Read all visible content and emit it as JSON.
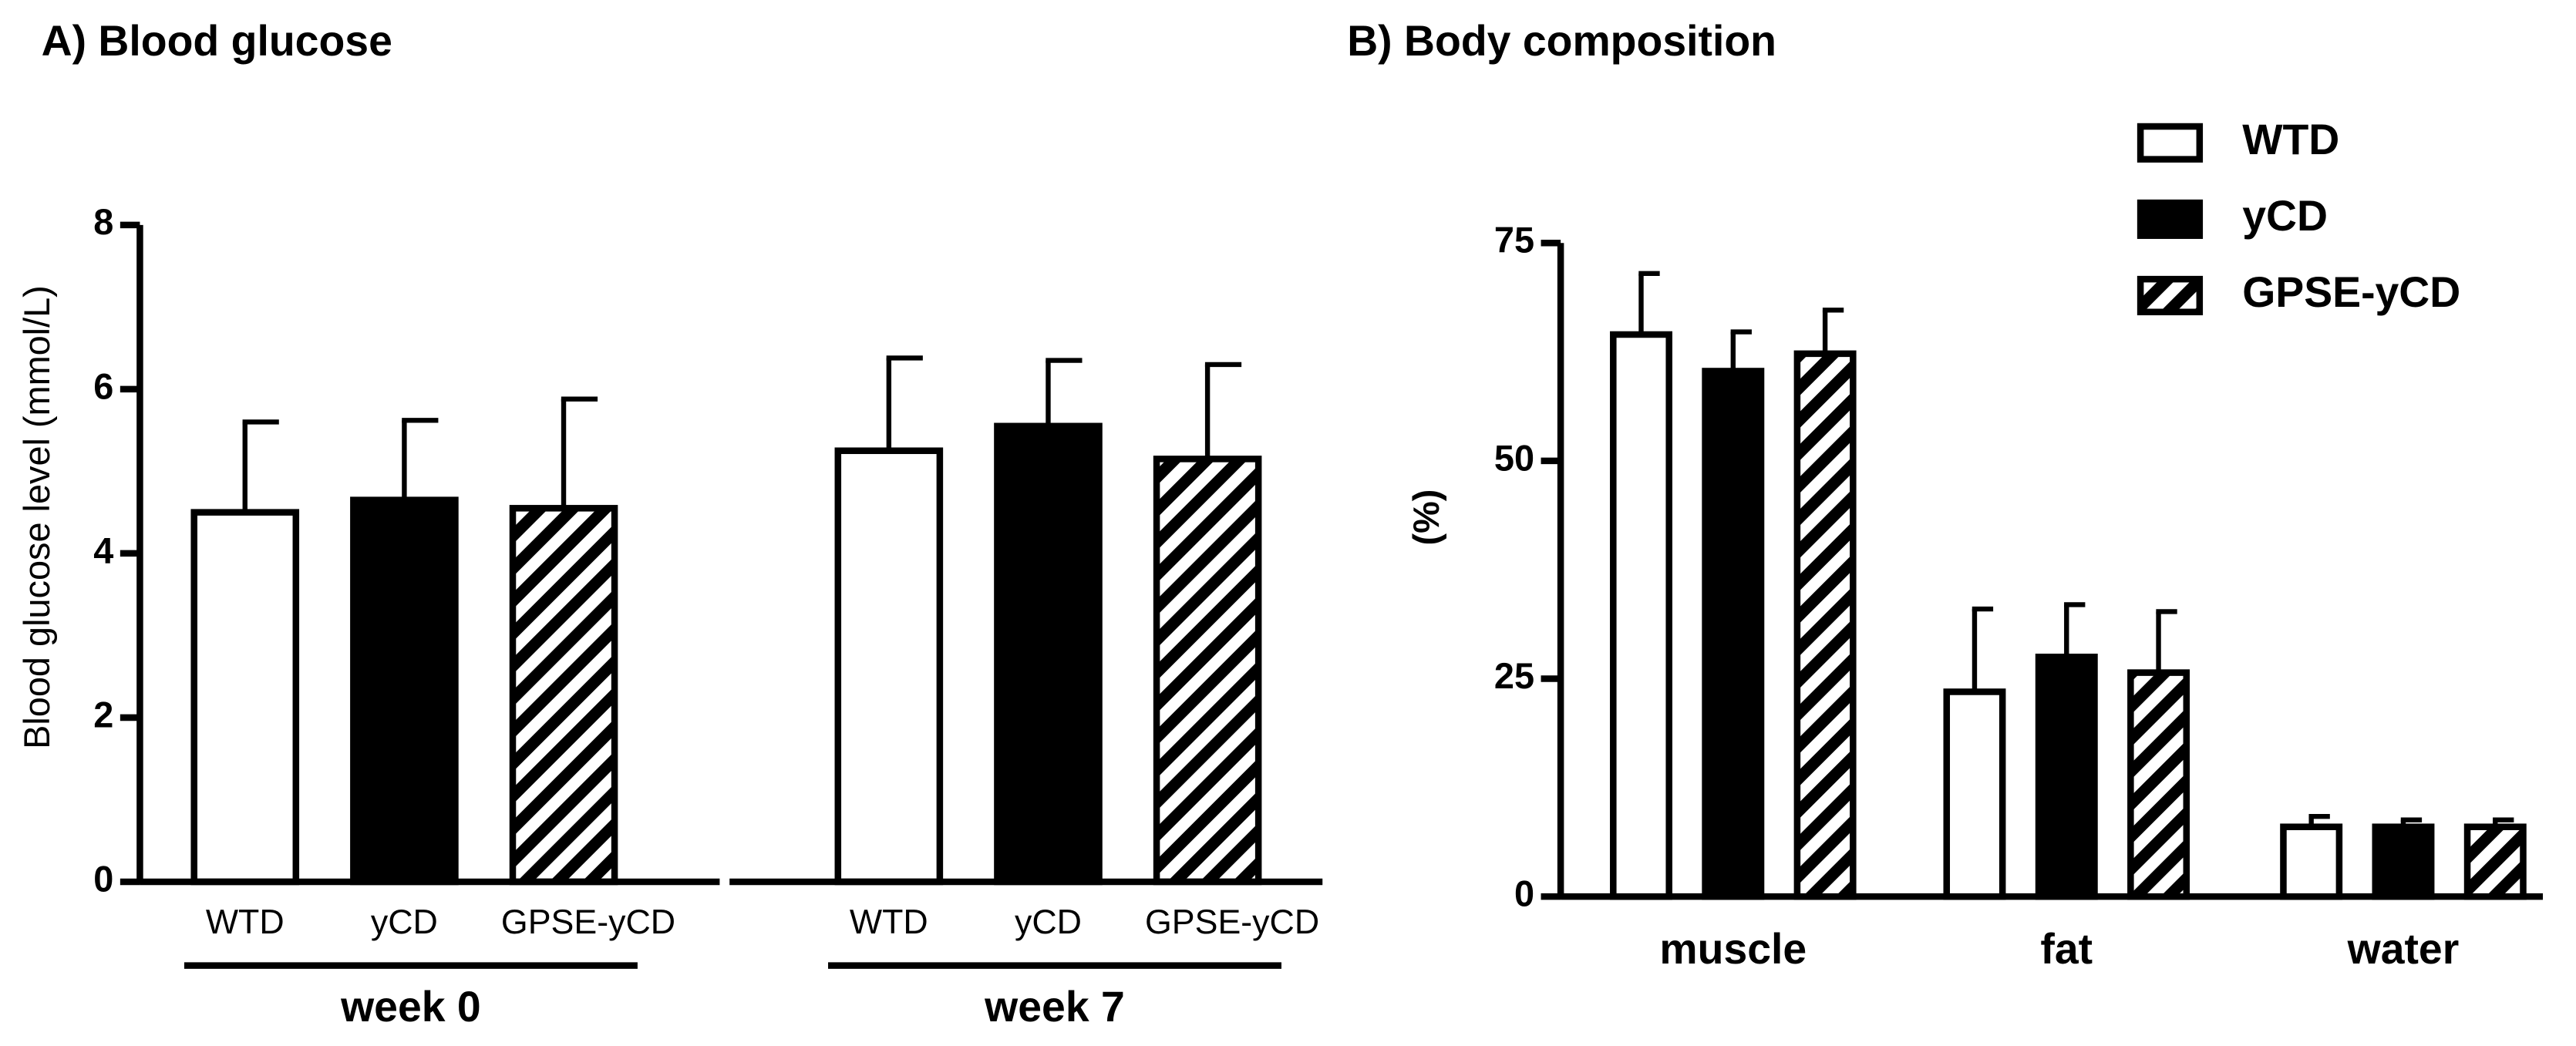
{
  "chart_data": [
    {
      "type": "grouped-bar",
      "title": "A) Blood glucose",
      "ylabel": "Blood glucose level (mmol/L)",
      "ylim": [
        0,
        8
      ],
      "yticks": [
        0,
        2,
        4,
        6,
        8
      ],
      "fills": [
        "white",
        "black",
        "hatch"
      ],
      "groups": [
        {
          "name": "week 0",
          "categories": [
            "WTD",
            "yCD",
            "GPSE-yCD"
          ],
          "values": [
            4.5,
            4.65,
            4.55
          ],
          "errors": [
            1.1,
            0.97,
            1.33
          ]
        },
        {
          "name": "week 7",
          "categories": [
            "WTD",
            "yCD",
            "GPSE-yCD"
          ],
          "values": [
            5.25,
            5.55,
            5.15
          ],
          "errors": [
            1.13,
            0.8,
            1.15
          ]
        }
      ]
    },
    {
      "type": "bar",
      "title": "B) Body composition",
      "ylabel": "(%)",
      "ylim": [
        0,
        75
      ],
      "yticks": [
        0,
        25,
        50,
        75
      ],
      "legend": "top-right",
      "categories": [
        "muscle",
        "fat",
        "water"
      ],
      "series": [
        {
          "name": "WTD",
          "color": "white",
          "values": [
            64.5,
            23.5,
            8
          ],
          "errors": [
            7,
            9.5,
            1.2
          ]
        },
        {
          "name": "yCD",
          "color": "black",
          "values": [
            60.3,
            27.5,
            8
          ],
          "errors": [
            4.5,
            6,
            0.8
          ]
        },
        {
          "name": "GPSE-yCD",
          "color": "hatch",
          "values": [
            62.3,
            25.7,
            8
          ],
          "errors": [
            5,
            7,
            0.8
          ]
        }
      ]
    }
  ]
}
